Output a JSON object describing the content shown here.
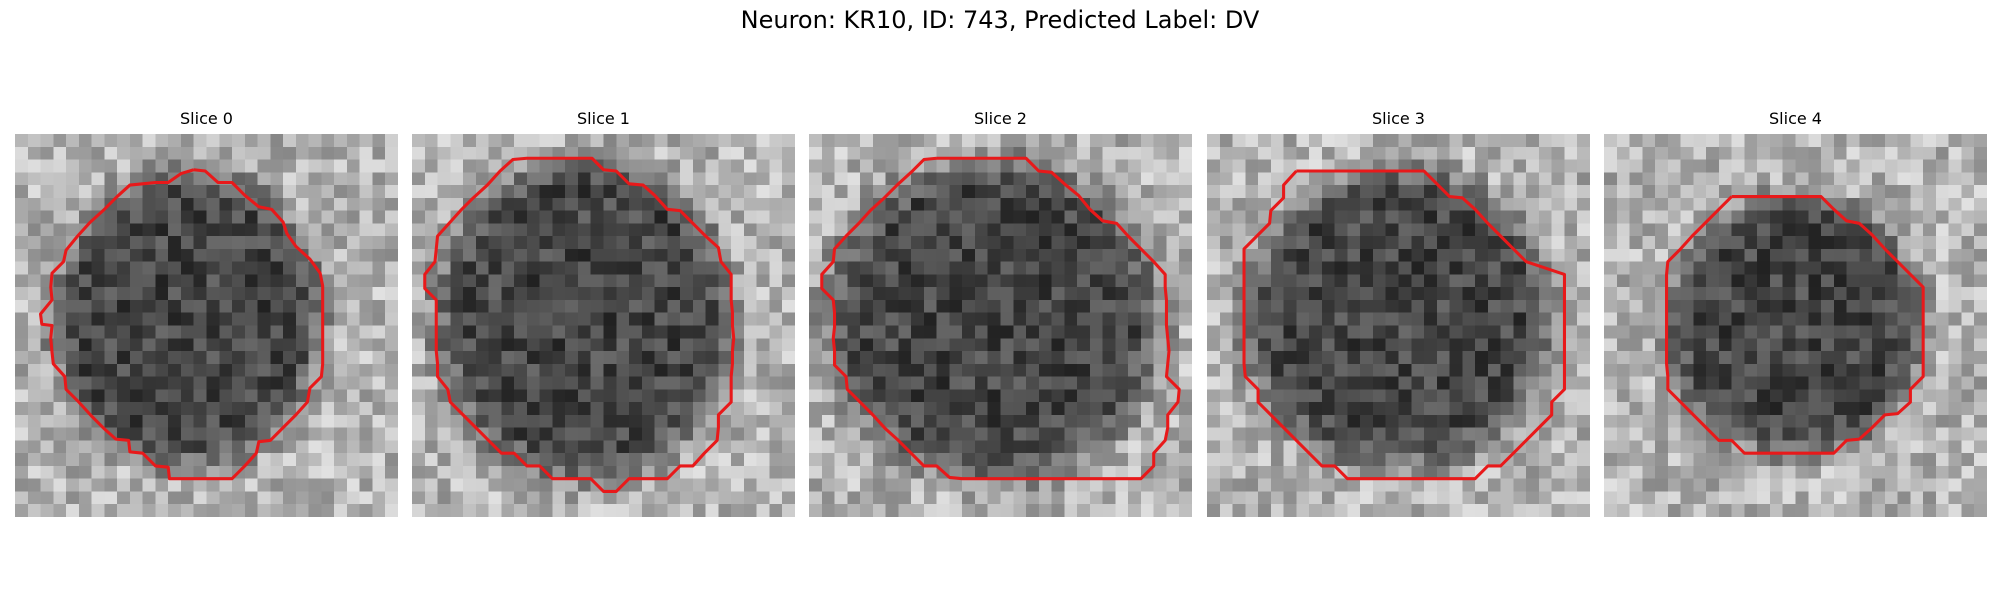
{
  "figure": {
    "suptitle": "Neuron: KR10, ID: 743, Predicted Label: DV",
    "contour_color": "#e8191a",
    "panels": [
      {
        "title": "Slice 0"
      },
      {
        "title": "Slice 1"
      },
      {
        "title": "Slice 2"
      },
      {
        "title": "Slice 3"
      },
      {
        "title": "Slice 4"
      }
    ]
  }
}
